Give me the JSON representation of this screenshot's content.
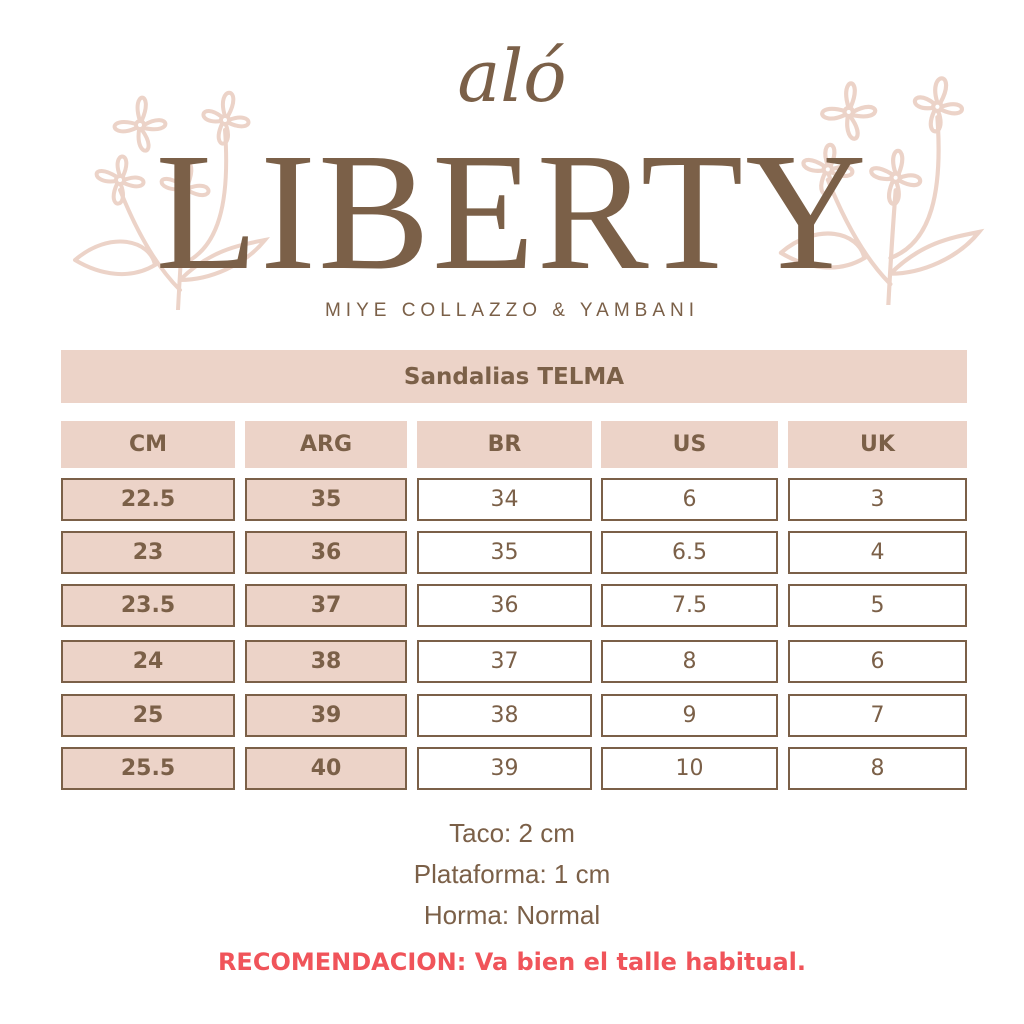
{
  "logo": {
    "script": "aló",
    "main": "LIBERTY",
    "subtitle": "MIYE COLLAZZO & YAMBANI"
  },
  "colors": {
    "accent_fill": "#ecd3c8",
    "text": "#7b6048",
    "recommendation": "#f0545a"
  },
  "table": {
    "title": "Sandalias TELMA",
    "headers": [
      "CM",
      "ARG",
      "BR",
      "US",
      "UK"
    ],
    "rows": [
      [
        "22.5",
        "35",
        "34",
        "6",
        "3"
      ],
      [
        "23",
        "36",
        "35",
        "6.5",
        "4"
      ],
      [
        "23.5",
        "37",
        "36",
        "7.5",
        "5"
      ],
      [
        "24",
        "38",
        "37",
        "8",
        "6"
      ],
      [
        "25",
        "39",
        "38",
        "9",
        "7"
      ],
      [
        "25.5",
        "40",
        "39",
        "10",
        "8"
      ]
    ]
  },
  "notes": {
    "taco": "Taco: 2 cm",
    "plataforma": "Plataforma: 1 cm",
    "horma": "Horma: Normal"
  },
  "recommendation": "RECOMENDACION: Va bien el talle habitual."
}
